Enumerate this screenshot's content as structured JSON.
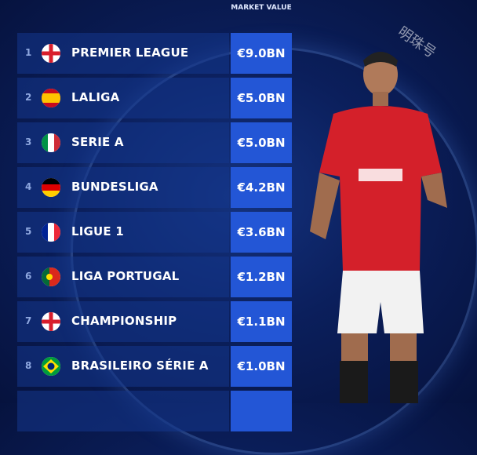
{
  "header": {
    "column_title": "MARKET VALUE"
  },
  "watermark": "明珠号",
  "rows": [
    {
      "rank": "1",
      "flag": "england",
      "league": "PREMIER LEAGUE",
      "value": "€9.0BN"
    },
    {
      "rank": "2",
      "flag": "spain",
      "league": "LALIGA",
      "value": "€5.0BN"
    },
    {
      "rank": "3",
      "flag": "italy",
      "league": "SERIE A",
      "value": "€5.0BN"
    },
    {
      "rank": "4",
      "flag": "germany",
      "league": "BUNDESLIGA",
      "value": "€4.2BN"
    },
    {
      "rank": "5",
      "flag": "france",
      "league": "LIGUE 1",
      "value": "€3.6BN"
    },
    {
      "rank": "6",
      "flag": "portugal",
      "league": "LIGA PORTUGAL",
      "value": "€1.2BN"
    },
    {
      "rank": "7",
      "flag": "england",
      "league": "CHAMPIONSHIP",
      "value": "€1.1BN"
    },
    {
      "rank": "8",
      "flag": "brazil",
      "league": "BRASILEIRO SÉRIE A",
      "value": "€1.0BN"
    }
  ],
  "colors": {
    "background": "#0b1f5c",
    "value_box": "#2356d6",
    "row_band": "#14378c",
    "kit_red": "#d4202a"
  }
}
